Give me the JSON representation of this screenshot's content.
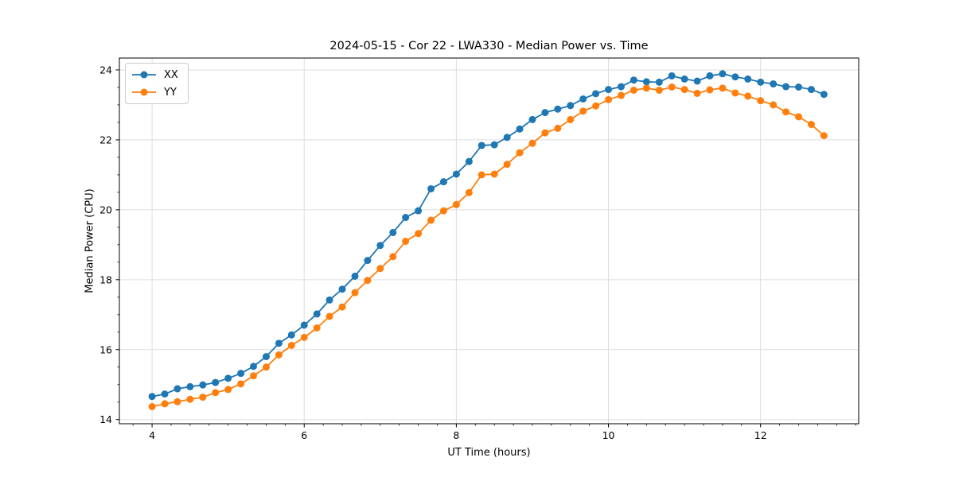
{
  "chart_data": {
    "type": "line",
    "title": "2024-05-15 - Cor 22 - LWA330 - Median Power vs. Time",
    "xlabel": "UT Time (hours)",
    "ylabel": "Median Power (CPU)",
    "xlim": [
      3.57,
      13.29
    ],
    "ylim": [
      13.88,
      24.34
    ],
    "xticks": [
      4,
      6,
      8,
      10,
      12
    ],
    "yticks": [
      14,
      16,
      18,
      20,
      22,
      24
    ],
    "minor_xtick_step": 0.25,
    "minor_ytick_step": 0.5,
    "grid": true,
    "grid_color": "#dddddd",
    "spine_color": "#000000",
    "text_color": "#000000",
    "legend_position": "upper-left",
    "marker": "o",
    "marker_radius": 4.5,
    "line_width": 1.8,
    "x": [
      4.0,
      4.167,
      4.333,
      4.5,
      4.667,
      4.833,
      5.0,
      5.167,
      5.333,
      5.5,
      5.667,
      5.833,
      6.0,
      6.167,
      6.333,
      6.5,
      6.667,
      6.833,
      7.0,
      7.167,
      7.333,
      7.5,
      7.667,
      7.833,
      8.0,
      8.167,
      8.333,
      8.5,
      8.667,
      8.833,
      9.0,
      9.167,
      9.333,
      9.5,
      9.667,
      9.833,
      10.0,
      10.167,
      10.333,
      10.5,
      10.667,
      10.833,
      11.0,
      11.167,
      11.333,
      11.5,
      11.667,
      11.833,
      12.0,
      12.167,
      12.333,
      12.5,
      12.667,
      12.833
    ],
    "series": [
      {
        "name": "XX",
        "color": "#1f77b4",
        "values": [
          14.66,
          14.73,
          14.88,
          14.94,
          14.99,
          15.06,
          15.18,
          15.32,
          15.52,
          15.8,
          16.18,
          16.42,
          16.7,
          17.02,
          17.42,
          17.73,
          18.1,
          18.55,
          18.98,
          19.35,
          19.78,
          19.97,
          20.6,
          20.8,
          21.02,
          21.38,
          21.84,
          21.86,
          22.07,
          22.31,
          22.58,
          22.78,
          22.88,
          22.98,
          23.17,
          23.32,
          23.44,
          23.52,
          23.71,
          23.66,
          23.65,
          23.83,
          23.74,
          23.68,
          23.83,
          23.89,
          23.8,
          23.74,
          23.65,
          23.6,
          23.52,
          23.51,
          23.44,
          23.3
        ]
      },
      {
        "name": "YY",
        "color": "#ff7f0e",
        "values": [
          14.37,
          14.45,
          14.51,
          14.58,
          14.64,
          14.77,
          14.86,
          15.02,
          15.25,
          15.5,
          15.85,
          16.12,
          16.35,
          16.62,
          16.95,
          17.22,
          17.63,
          17.98,
          18.32,
          18.66,
          19.1,
          19.32,
          19.7,
          19.97,
          20.15,
          20.49,
          21.0,
          21.02,
          21.3,
          21.63,
          21.9,
          22.2,
          22.33,
          22.58,
          22.82,
          22.97,
          23.15,
          23.27,
          23.42,
          23.48,
          23.42,
          23.51,
          23.44,
          23.33,
          23.43,
          23.48,
          23.34,
          23.25,
          23.12,
          23.0,
          22.8,
          22.66,
          22.44,
          22.12
        ]
      }
    ]
  }
}
